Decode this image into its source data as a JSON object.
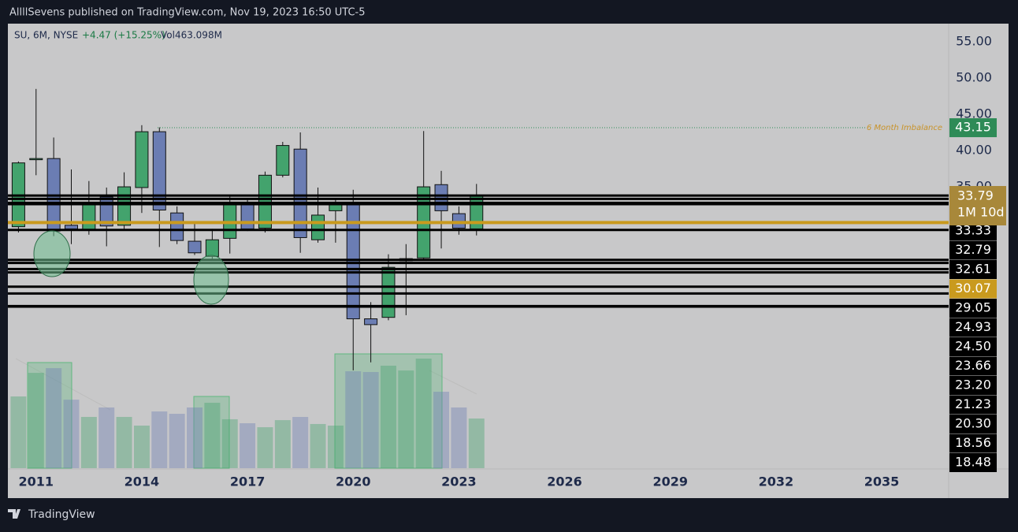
{
  "header": {
    "publisher": "AllllSevens published on TradingView.com, Nov 19, 2023 16:50 UTC-5"
  },
  "chart_data": {
    "type": "candlestick",
    "symbol": "SU, 6M, NYSE",
    "change": "+4.47 (+15.25%)",
    "volume_label": "Vol463.098M",
    "x": [
      2010.5,
      2011,
      2011.5,
      2012,
      2012.5,
      2013,
      2013.5,
      2014,
      2014.5,
      2015,
      2015.5,
      2016,
      2016.5,
      2017,
      2017.5,
      2018,
      2018.5,
      2019,
      2019.5,
      2020,
      2020.5,
      2021,
      2021.5,
      2022,
      2022.5,
      2023,
      2023.5
    ],
    "open": [
      29.5,
      38.8,
      38.9,
      29.7,
      29.0,
      33.6,
      29.7,
      34.9,
      42.6,
      31.4,
      27.5,
      25.4,
      27.9,
      32.6,
      29.3,
      36.6,
      40.2,
      27.7,
      31.7,
      32.7,
      16.8,
      17.0,
      24.8,
      25.2,
      35.3,
      31.3,
      29.2
    ],
    "high": [
      38.5,
      48.5,
      41.8,
      37.4,
      35.8,
      34.9,
      37.0,
      43.5,
      43.2,
      32.3,
      30.0,
      29.2,
      33.7,
      33.3,
      37.1,
      41.2,
      42.5,
      34.9,
      33.3,
      34.6,
      19.1,
      25.7,
      27.1,
      42.7,
      37.2,
      32.3,
      35.4
    ],
    "low": [
      28.7,
      36.6,
      28.2,
      27.1,
      28.4,
      26.8,
      29.2,
      31.4,
      26.7,
      27.1,
      25.6,
      25.0,
      25.8,
      28.9,
      28.7,
      36.3,
      25.9,
      27.3,
      27.3,
      9.7,
      10.8,
      16.6,
      17.3,
      24.9,
      26.5,
      28.4,
      28.3
    ],
    "close": [
      38.3,
      38.9,
      28.9,
      29.2,
      32.7,
      29.6,
      35.0,
      42.6,
      31.8,
      27.6,
      25.9,
      27.7,
      32.6,
      29.2,
      36.6,
      40.7,
      28.0,
      31.1,
      32.6,
      16.8,
      16.0,
      23.9,
      25.1,
      35.0,
      31.7,
      29.3,
      33.79
    ],
    "volume": [
      669,
      889,
      933,
      639,
      478,
      566,
      478,
      397,
      529,
      507,
      566,
      610,
      456,
      419,
      382,
      448,
      478,
      412,
      397,
      904,
      897,
      956,
      911,
      1022,
      713,
      566,
      463.098
    ],
    "up_color": "#43a36d",
    "down_color": "#6b7db3",
    "xlim": [
      2010.2,
      2036.9
    ],
    "xticks": [
      2011,
      2014,
      2017,
      2020,
      2023,
      2026,
      2029,
      2032,
      2035
    ],
    "ylim": [
      -3.9,
      57.5
    ],
    "yticks": [
      {
        "value": 35,
        "label": "35.00"
      },
      {
        "value": 40,
        "label": "40.00"
      },
      {
        "value": 45,
        "label": "45.00"
      },
      {
        "value": 50,
        "label": "50.00"
      },
      {
        "value": 55,
        "label": "55.00"
      }
    ],
    "grid": false,
    "current_price": {
      "value": 33.79,
      "label": "33.79",
      "countdown": "1M 10d",
      "color": "#a8883a"
    },
    "levels": [
      {
        "value": 33.33,
        "label": "33.33",
        "color": "#000000"
      },
      {
        "value": 32.79,
        "label": "32.79",
        "color": "#000000"
      },
      {
        "value": 32.61,
        "label": "32.61",
        "color": "#000000"
      },
      {
        "value": 30.07,
        "label": "30.07",
        "color": "#c99a1e"
      },
      {
        "value": 29.05,
        "label": "29.05",
        "color": "#000000"
      },
      {
        "value": 24.93,
        "label": "24.93",
        "color": "#000000"
      },
      {
        "value": 24.5,
        "label": "24.50",
        "color": "#000000"
      },
      {
        "value": 23.66,
        "label": "23.66",
        "color": "#000000"
      },
      {
        "value": 23.2,
        "label": "23.20",
        "color": "#000000"
      },
      {
        "value": 21.23,
        "label": "21.23",
        "color": "#000000"
      },
      {
        "value": 20.3,
        "label": "20.30",
        "color": "#000000"
      },
      {
        "value": 18.56,
        "label": "18.56",
        "color": "#000000"
      },
      {
        "value": 18.48,
        "label": "18.48",
        "color": "#000000"
      }
    ],
    "imbalance": {
      "value": 43.15,
      "label": "43.15",
      "text": "6 Month Imbalance",
      "color": "#2e8b57"
    }
  },
  "footer": {
    "brand": "TradingView"
  }
}
